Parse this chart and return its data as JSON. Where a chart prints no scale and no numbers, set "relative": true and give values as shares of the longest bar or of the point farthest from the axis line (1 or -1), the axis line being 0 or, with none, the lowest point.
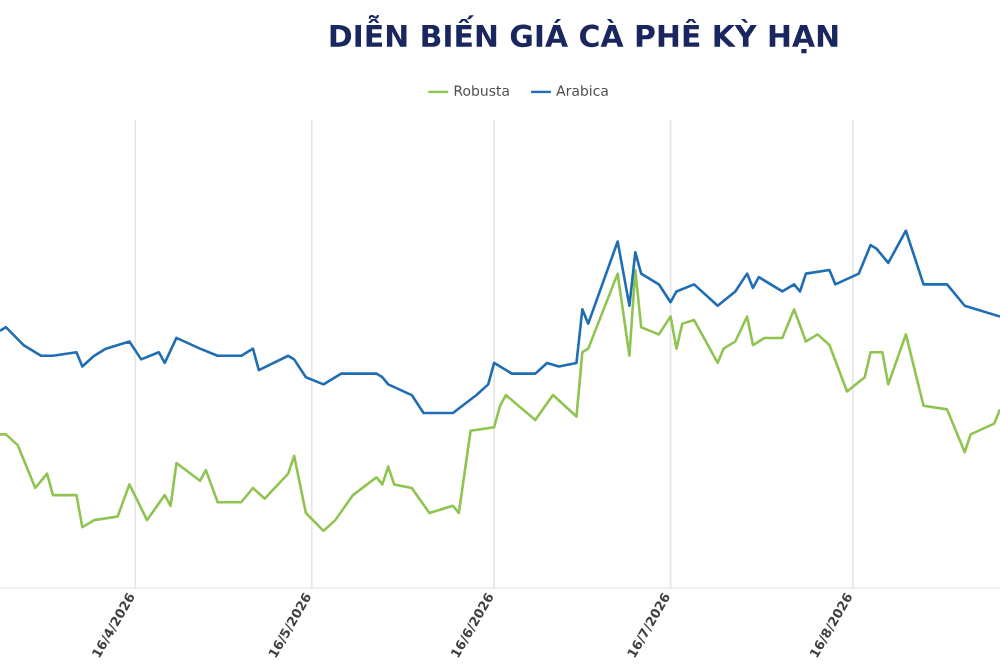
{
  "chart_data": {
    "type": "line",
    "title": "DIỄN BIẾN GIÁ CÀ PHÊ KỲ HẠN",
    "relative": true,
    "grid": "x",
    "legend": "top",
    "marker": "none",
    "line_style": "solid",
    "xlim": [
      "2026-03-24",
      "2026-09-10"
    ],
    "xticks": [
      {
        "value": "2026-04-16",
        "label": "16/4/2026"
      },
      {
        "value": "2026-05-16",
        "label": "16/5/2026"
      },
      {
        "value": "2026-06-16",
        "label": "16/6/2026"
      },
      {
        "value": "2026-07-16",
        "label": "16/7/2026"
      },
      {
        "value": "2026-08-16",
        "label": "16/8/2026"
      }
    ],
    "series": [
      {
        "name": "Robusta",
        "color": "#8fc450",
        "x": [
          "2026-03-24",
          "2026-03-25",
          "2026-03-27",
          "2026-03-30",
          "2026-04-01",
          "2026-04-02",
          "2026-04-06",
          "2026-04-07",
          "2026-04-09",
          "2026-04-13",
          "2026-04-15",
          "2026-04-18",
          "2026-04-21",
          "2026-04-22",
          "2026-04-23",
          "2026-04-27",
          "2026-04-28",
          "2026-04-30",
          "2026-05-04",
          "2026-05-06",
          "2026-05-08",
          "2026-05-12",
          "2026-05-13",
          "2026-05-15",
          "2026-05-18",
          "2026-05-20",
          "2026-05-23",
          "2026-05-27",
          "2026-05-28",
          "2026-05-29",
          "2026-05-30",
          "2026-06-02",
          "2026-06-05",
          "2026-06-09",
          "2026-06-10",
          "2026-06-12",
          "2026-06-16",
          "2026-06-17",
          "2026-06-18",
          "2026-06-23",
          "2026-06-26",
          "2026-06-30",
          "2026-07-01",
          "2026-07-02",
          "2026-07-07",
          "2026-07-09",
          "2026-07-10",
          "2026-07-11",
          "2026-07-14",
          "2026-07-16",
          "2026-07-17",
          "2026-07-18",
          "2026-07-20",
          "2026-07-24",
          "2026-07-25",
          "2026-07-27",
          "2026-07-29",
          "2026-07-30",
          "2026-08-01",
          "2026-08-04",
          "2026-08-06",
          "2026-08-08",
          "2026-08-10",
          "2026-08-12",
          "2026-08-15",
          "2026-08-18",
          "2026-08-19",
          "2026-08-21",
          "2026-08-22",
          "2026-08-25",
          "2026-08-28",
          "2026-09-01",
          "2026-09-04",
          "2026-09-05",
          "2026-09-09",
          "2026-09-10"
        ],
        "values": [
          0.43,
          0.43,
          0.4,
          0.28,
          0.32,
          0.26,
          0.26,
          0.17,
          0.19,
          0.2,
          0.29,
          0.19,
          0.26,
          0.23,
          0.35,
          0.3,
          0.33,
          0.24,
          0.24,
          0.28,
          0.25,
          0.32,
          0.37,
          0.21,
          0.16,
          0.19,
          0.26,
          0.31,
          0.29,
          0.34,
          0.29,
          0.28,
          0.21,
          0.23,
          0.21,
          0.44,
          0.45,
          0.51,
          0.54,
          0.47,
          0.54,
          0.48,
          0.66,
          0.67,
          0.88,
          0.65,
          0.89,
          0.73,
          0.71,
          0.76,
          0.67,
          0.74,
          0.75,
          0.63,
          0.67,
          0.69,
          0.76,
          0.68,
          0.7,
          0.7,
          0.78,
          0.69,
          0.71,
          0.68,
          0.55,
          0.59,
          0.66,
          0.66,
          0.57,
          0.71,
          0.51,
          0.5,
          0.38,
          0.43,
          0.46,
          0.5
        ]
      },
      {
        "name": "Arabica",
        "color": "#1f6db3",
        "x": [
          "2026-03-24",
          "2026-03-25",
          "2026-03-28",
          "2026-03-31",
          "2026-04-02",
          "2026-04-06",
          "2026-04-07",
          "2026-04-09",
          "2026-04-11",
          "2026-04-15",
          "2026-04-17",
          "2026-04-20",
          "2026-04-21",
          "2026-04-23",
          "2026-04-27",
          "2026-04-30",
          "2026-05-04",
          "2026-05-06",
          "2026-05-07",
          "2026-05-12",
          "2026-05-13",
          "2026-05-15",
          "2026-05-18",
          "2026-05-21",
          "2026-05-27",
          "2026-05-28",
          "2026-05-29",
          "2026-06-02",
          "2026-06-04",
          "2026-06-09",
          "2026-06-13",
          "2026-06-15",
          "2026-06-16",
          "2026-06-19",
          "2026-06-23",
          "2026-06-25",
          "2026-06-27",
          "2026-06-30",
          "2026-07-01",
          "2026-07-02",
          "2026-07-07",
          "2026-07-09",
          "2026-07-10",
          "2026-07-11",
          "2026-07-14",
          "2026-07-16",
          "2026-07-17",
          "2026-07-20",
          "2026-07-24",
          "2026-07-27",
          "2026-07-29",
          "2026-07-30",
          "2026-07-31",
          "2026-08-04",
          "2026-08-06",
          "2026-08-07",
          "2026-08-08",
          "2026-08-12",
          "2026-08-13",
          "2026-08-17",
          "2026-08-19",
          "2026-08-20",
          "2026-08-22",
          "2026-08-25",
          "2026-08-28",
          "2026-09-01",
          "2026-09-04",
          "2026-09-10"
        ],
        "values": [
          0.72,
          0.73,
          0.68,
          0.65,
          0.65,
          0.66,
          0.62,
          0.65,
          0.67,
          0.69,
          0.64,
          0.66,
          0.63,
          0.7,
          0.67,
          0.65,
          0.65,
          0.67,
          0.61,
          0.65,
          0.64,
          0.59,
          0.57,
          0.6,
          0.6,
          0.59,
          0.57,
          0.54,
          0.49,
          0.49,
          0.54,
          0.57,
          0.63,
          0.6,
          0.6,
          0.63,
          0.62,
          0.63,
          0.78,
          0.74,
          0.97,
          0.79,
          0.94,
          0.88,
          0.85,
          0.8,
          0.83,
          0.85,
          0.79,
          0.83,
          0.88,
          0.84,
          0.87,
          0.83,
          0.85,
          0.83,
          0.88,
          0.89,
          0.85,
          0.88,
          0.96,
          0.95,
          0.91,
          1,
          0.85,
          0.85,
          0.79,
          0.76
        ]
      }
    ]
  }
}
